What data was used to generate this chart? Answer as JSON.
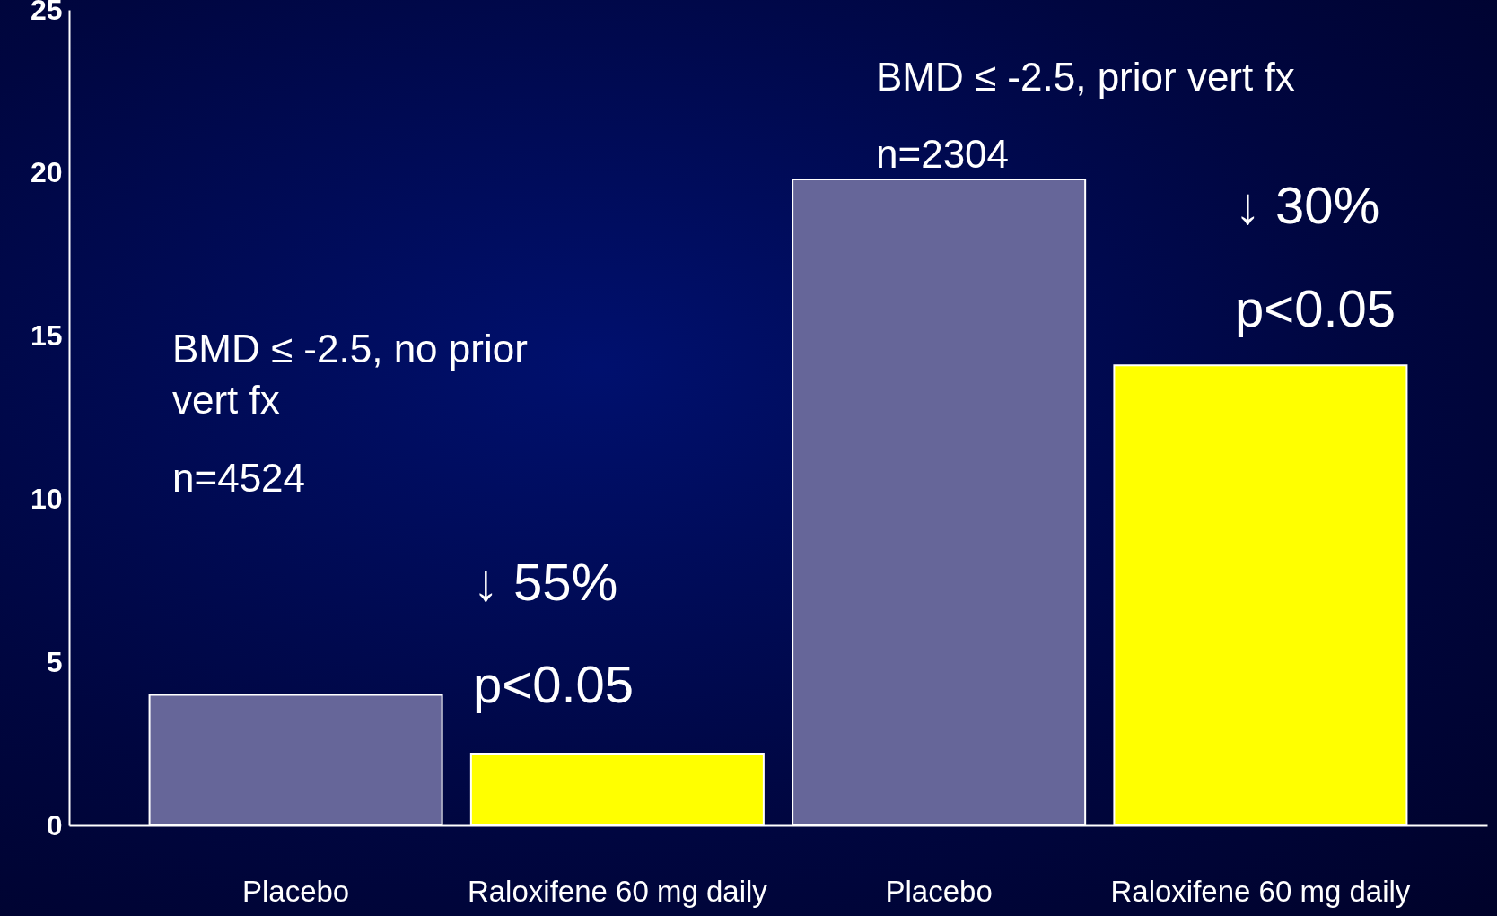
{
  "chart_data": {
    "type": "bar",
    "categories": [
      "Placebo",
      "Raloxifene 60 mg daily",
      "Placebo",
      "Raloxifene 60 mg daily"
    ],
    "values": [
      4.0,
      2.2,
      19.8,
      14.1
    ],
    "colors": [
      "#666699",
      "#ffff00",
      "#666699",
      "#ffff00"
    ],
    "ylim": [
      0,
      25
    ],
    "yticks": [
      0,
      5,
      10,
      15,
      20,
      25
    ],
    "grid": false,
    "annotations": [
      "BMD ≤ -2.5, no prior\nvert fx",
      "n=4524",
      "↓ 55%",
      "p<0.05",
      "BMD ≤ -2.5, prior vert fx",
      "n=2304",
      "↓ 30%",
      "p<0.05"
    ]
  }
}
